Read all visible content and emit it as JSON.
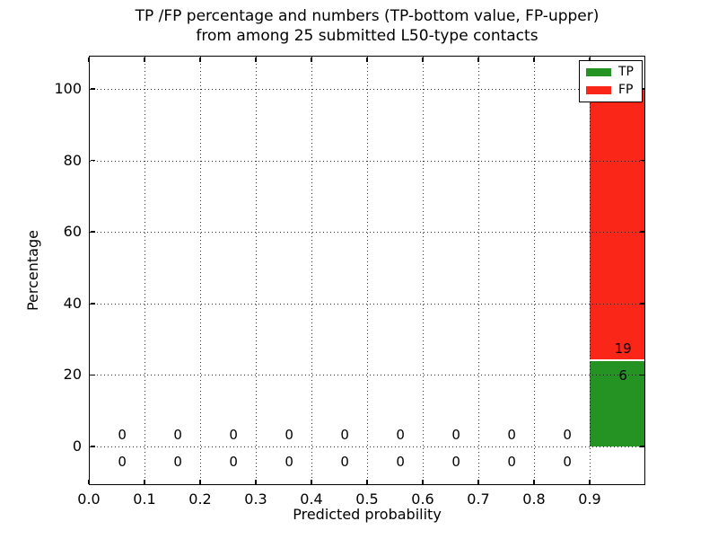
{
  "chart_data": {
    "type": "bar",
    "stacked": true,
    "title_lines": [
      "TP /FP percentage and numbers (TP-bottom value, FP-upper)",
      "from among 25 submitted L50-type contacts"
    ],
    "xlabel": "Predicted probability",
    "ylabel": "Percentage",
    "xlim": [
      0.0,
      1.0
    ],
    "ylim": [
      -10.8,
      109.3
    ],
    "xticks": [
      0.0,
      0.1,
      0.2,
      0.3,
      0.4,
      0.5,
      0.6,
      0.7,
      0.8,
      0.9
    ],
    "xtick_labels": [
      "0.0",
      "0.1",
      "0.2",
      "0.3",
      "0.4",
      "0.5",
      "0.6",
      "0.7",
      "0.8",
      "0.9"
    ],
    "yticks": [
      0,
      20,
      40,
      60,
      80,
      100
    ],
    "ytick_labels": [
      "0",
      "20",
      "40",
      "60",
      "80",
      "100"
    ],
    "grid": true,
    "grid_linestyle": "dotted",
    "legend_position": "upper right",
    "total_contacts": 25,
    "bin_edges": [
      0.0,
      0.1,
      0.2,
      0.3,
      0.4,
      0.5,
      0.6,
      0.7,
      0.8,
      0.9,
      1.0
    ],
    "series": [
      {
        "name": "TP",
        "color": "#249324",
        "counts": [
          0,
          0,
          0,
          0,
          0,
          0,
          0,
          0,
          0,
          6
        ]
      },
      {
        "name": "FP",
        "color": "#fa2617",
        "counts": [
          0,
          0,
          0,
          0,
          0,
          0,
          0,
          0,
          0,
          19
        ]
      }
    ],
    "colors": {
      "grid": "#000000",
      "spine": "#000000",
      "text": "#000000",
      "segment_separator": "#ffffff",
      "background": "#ffffff"
    }
  }
}
